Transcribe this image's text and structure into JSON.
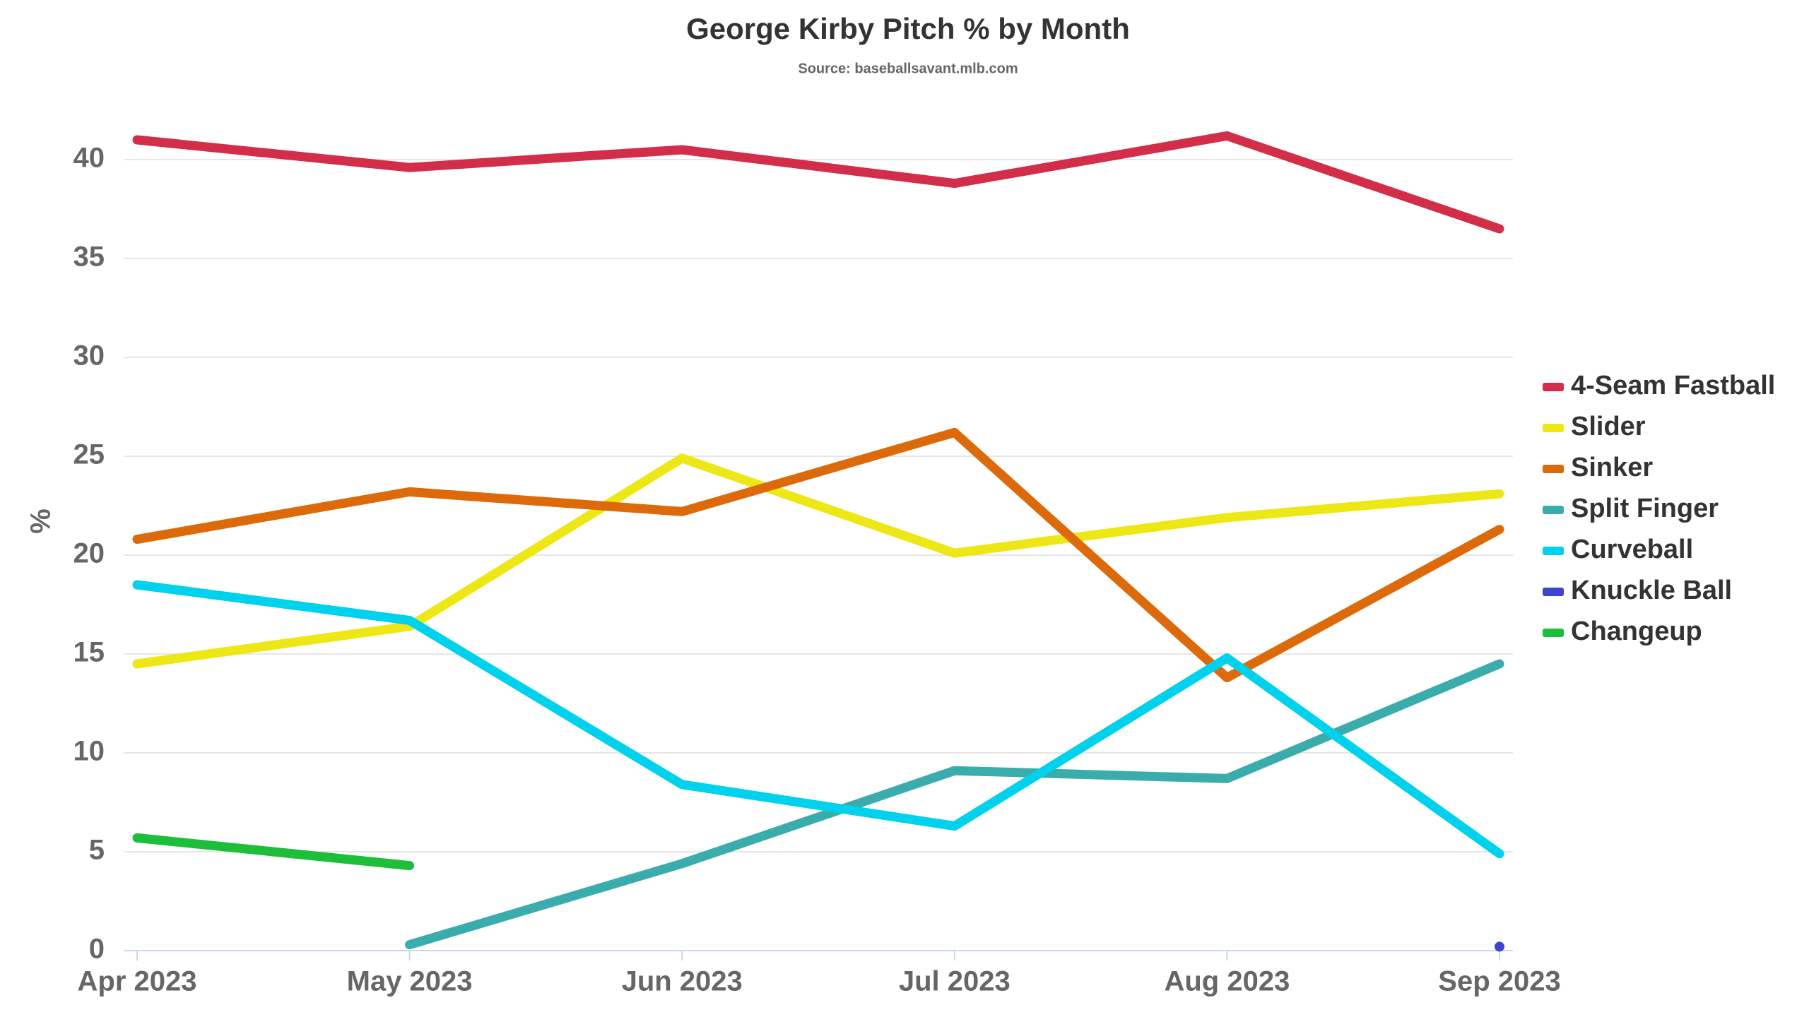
{
  "chart_data": {
    "type": "line",
    "title": "George Kirby Pitch % by Month",
    "subtitle": "Source: baseballsavant.mlb.com",
    "y_label": "%",
    "categories": [
      "Apr 2023",
      "May 2023",
      "Jun 2023",
      "Jul 2023",
      "Aug 2023",
      "Sep 2023"
    ],
    "series": [
      {
        "name": "4-Seam Fastball",
        "color": "#d22d49",
        "values": [
          41.0,
          39.6,
          40.5,
          38.8,
          41.2,
          36.5
        ]
      },
      {
        "name": "Slider",
        "color": "#eee716",
        "values": [
          14.5,
          16.4,
          24.9,
          20.1,
          21.9,
          23.1
        ]
      },
      {
        "name": "Sinker",
        "color": "#dd6a0a",
        "values": [
          20.8,
          23.2,
          22.2,
          26.2,
          13.8,
          21.3
        ]
      },
      {
        "name": "Split Finger",
        "color": "#3bacac",
        "values": [
          null,
          0.3,
          4.4,
          9.1,
          8.7,
          14.5
        ]
      },
      {
        "name": "Curveball",
        "color": "#00d1ed",
        "values": [
          18.5,
          16.7,
          8.4,
          6.3,
          14.8,
          4.9
        ]
      },
      {
        "name": "Knuckle Ball",
        "color": "#3c44cd",
        "values": [
          null,
          null,
          null,
          null,
          null,
          0.2
        ]
      },
      {
        "name": "Changeup",
        "color": "#1dbe3a",
        "values": [
          5.7,
          4.3,
          null,
          null,
          null,
          null
        ]
      }
    ],
    "ylim": [
      0,
      42
    ],
    "yticks": [
      0,
      5,
      10,
      15,
      20,
      25,
      30,
      35,
      40
    ],
    "grid": true,
    "legend": "right"
  }
}
